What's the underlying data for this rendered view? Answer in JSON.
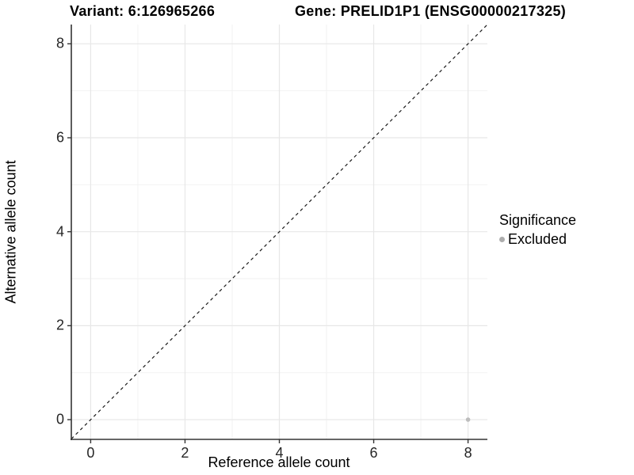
{
  "titles": {
    "variant": "Variant: 6:126965266",
    "gene": "Gene: PRELID1P1 (ENSG00000217325)"
  },
  "axes": {
    "x_label": "Reference allele count",
    "y_label": "Alternative allele count",
    "x_ticks": [
      0,
      2,
      4,
      6,
      8
    ],
    "y_ticks": [
      0,
      2,
      4,
      6,
      8
    ]
  },
  "legend": {
    "title": "Significance",
    "items": [
      {
        "label": "Excluded",
        "color": "#adadad"
      }
    ]
  },
  "colors": {
    "axis_line": "#333333",
    "tick_mark": "#333333",
    "grid_major": "#e7e7e7",
    "grid_minor": "#f2f2f2",
    "dashed_line": "#1a1a1a",
    "point": "#bdbdbd",
    "panel_background": "#ffffff"
  },
  "chart_data": {
    "type": "scatter",
    "title": "Variant: 6:126965266 — Gene: PRELID1P1 (ENSG00000217325)",
    "xlabel": "Reference allele count",
    "ylabel": "Alternative allele count",
    "xlim": [
      -0.41,
      8.41
    ],
    "ylim": [
      -0.42,
      8.41
    ],
    "x_ticks": [
      0,
      2,
      4,
      6,
      8
    ],
    "y_ticks": [
      0,
      2,
      4,
      6,
      8
    ],
    "minor_grid_x": [
      1,
      3,
      5,
      7
    ],
    "minor_grid_y": [
      1,
      3,
      5,
      7
    ],
    "grid": "major and minor gridlines on, light gray",
    "legend_position": "right",
    "series": [
      {
        "name": "Excluded",
        "color": "#bdbdbd",
        "marker": "circle",
        "points": [
          {
            "x": 8,
            "y": 0
          }
        ]
      }
    ],
    "reference_line": {
      "description": "identity line y = x",
      "style": "dashed",
      "color": "#1a1a1a",
      "slope": 1,
      "intercept": 0
    }
  }
}
